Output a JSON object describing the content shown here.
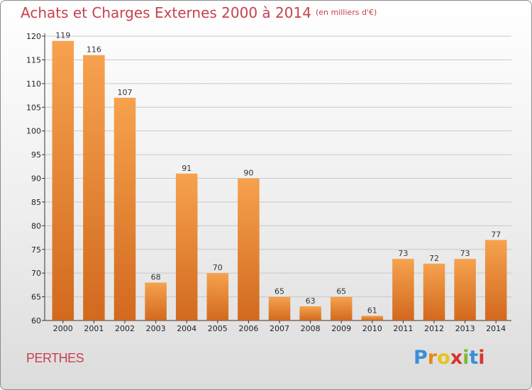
{
  "header": {
    "title": "Achats et Charges Externes 2000 à 2014",
    "unit": "(en milliers d'€)"
  },
  "footer": {
    "town": "PERTHES",
    "logo_text": "Proxiti"
  },
  "colors": {
    "bar_light": "#f6a24e",
    "bar_dark": "#d2691e",
    "title": "#c7414e",
    "grid": "#c8c8c8"
  },
  "chart_data": {
    "type": "bar",
    "title": "Achats et Charges Externes 2000 à 2014",
    "subtitle": "(en milliers d'€)",
    "xlabel": "",
    "ylabel": "",
    "categories": [
      "2000",
      "2001",
      "2002",
      "2003",
      "2004",
      "2005",
      "2006",
      "2007",
      "2008",
      "2009",
      "2010",
      "2011",
      "2012",
      "2013",
      "2014"
    ],
    "values": [
      119,
      116,
      107,
      68,
      91,
      70,
      90,
      65,
      63,
      65,
      61,
      73,
      72,
      73,
      77
    ],
    "ylim": [
      60,
      120
    ],
    "yticks": [
      60,
      65,
      70,
      75,
      80,
      85,
      90,
      95,
      100,
      105,
      110,
      115,
      120
    ],
    "grid": true,
    "data_labels": true
  }
}
